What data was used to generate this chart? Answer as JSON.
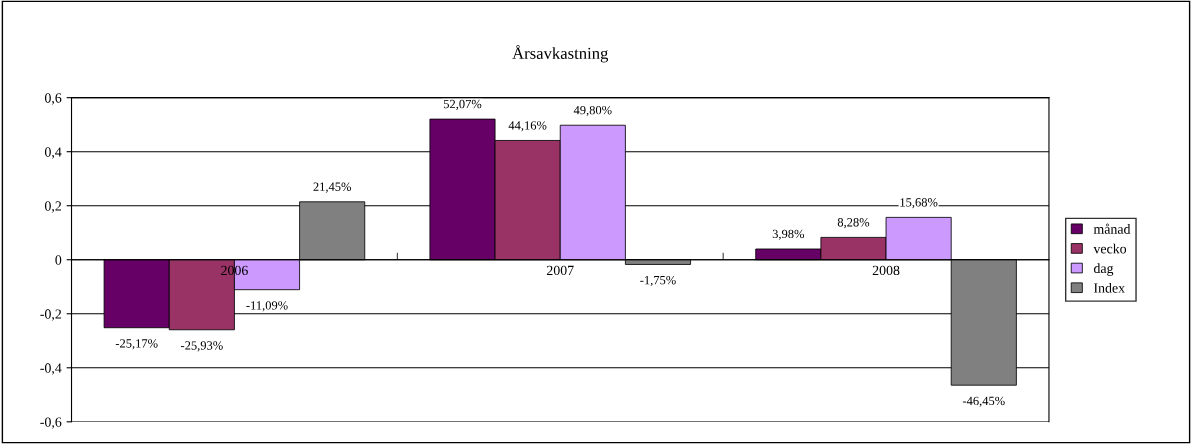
{
  "chart_data": {
    "type": "bar",
    "title": "Årsavkastning",
    "categories": [
      "2006",
      "2007",
      "2008"
    ],
    "series": [
      {
        "name": "månad",
        "color": "#660066",
        "values": [
          -0.2517,
          0.5207,
          0.0398
        ],
        "value_labels": [
          "-25,17%",
          "52,07%",
          "3,98%"
        ]
      },
      {
        "name": "vecko",
        "color": "#993366",
        "values": [
          -0.2593,
          0.4416,
          0.0828
        ],
        "value_labels": [
          "-25,93%",
          "44,16%",
          "8,28%"
        ]
      },
      {
        "name": "dag",
        "color": "#cc99ff",
        "values": [
          -0.1109,
          0.498,
          0.1568
        ],
        "value_labels": [
          "-11,09%",
          "49,80%",
          "15,68%"
        ]
      },
      {
        "name": "Index",
        "color": "#808080",
        "values": [
          0.2145,
          -0.0175,
          -0.4645
        ],
        "value_labels": [
          "21,45%",
          "-1,75%",
          "-46,45%"
        ]
      }
    ],
    "ylim": [
      -0.6,
      0.6
    ],
    "yticks": [
      {
        "value": -0.6,
        "label": "-0,6"
      },
      {
        "value": -0.4,
        "label": "-0,4"
      },
      {
        "value": -0.2,
        "label": "-0,2"
      },
      {
        "value": 0,
        "label": "0"
      },
      {
        "value": 0.2,
        "label": "0,2"
      },
      {
        "value": 0.4,
        "label": "0,4"
      },
      {
        "value": 0.6,
        "label": "0,6"
      }
    ],
    "grid": "y",
    "legend": "right"
  }
}
